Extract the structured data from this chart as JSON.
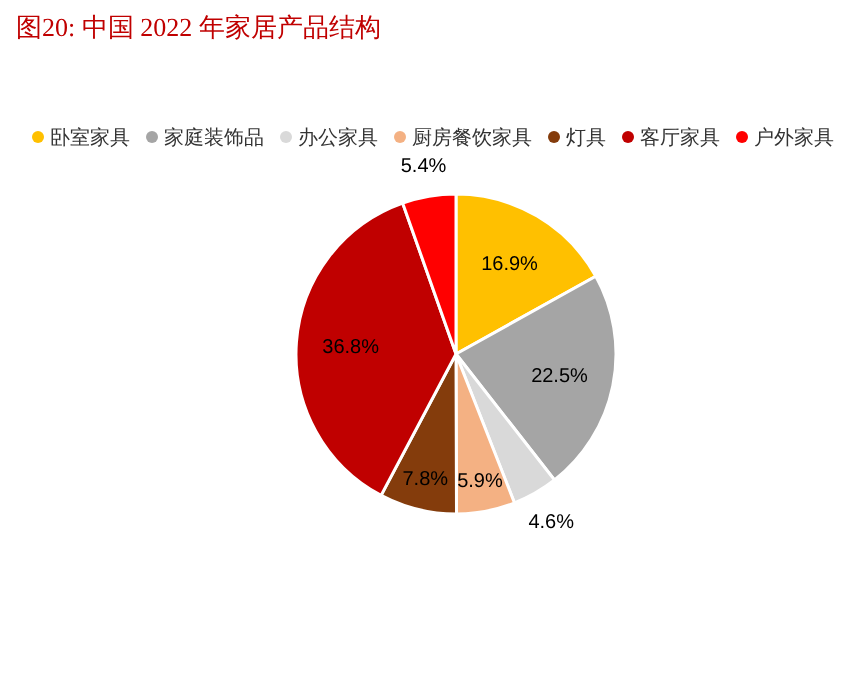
{
  "chart_data": {
    "type": "pie",
    "title": "图20:   中国 2022 年家居产品结构",
    "categories": [
      "卧室家具",
      "家庭装饰品",
      "办公家具",
      "厨房餐饮家具",
      "灯具",
      "客厅家具",
      "户外家具"
    ],
    "values": [
      16.9,
      22.5,
      4.6,
      5.9,
      7.8,
      36.8,
      5.4
    ],
    "value_labels": [
      "16.9%",
      "22.5%",
      "4.6%",
      "5.9%",
      "7.8%",
      "36.8%",
      "5.4%"
    ],
    "colors": [
      "#ffc000",
      "#a5a5a5",
      "#d9d9d9",
      "#f4b183",
      "#843c0c",
      "#c00000",
      "#ff0000"
    ],
    "legend": "top"
  }
}
